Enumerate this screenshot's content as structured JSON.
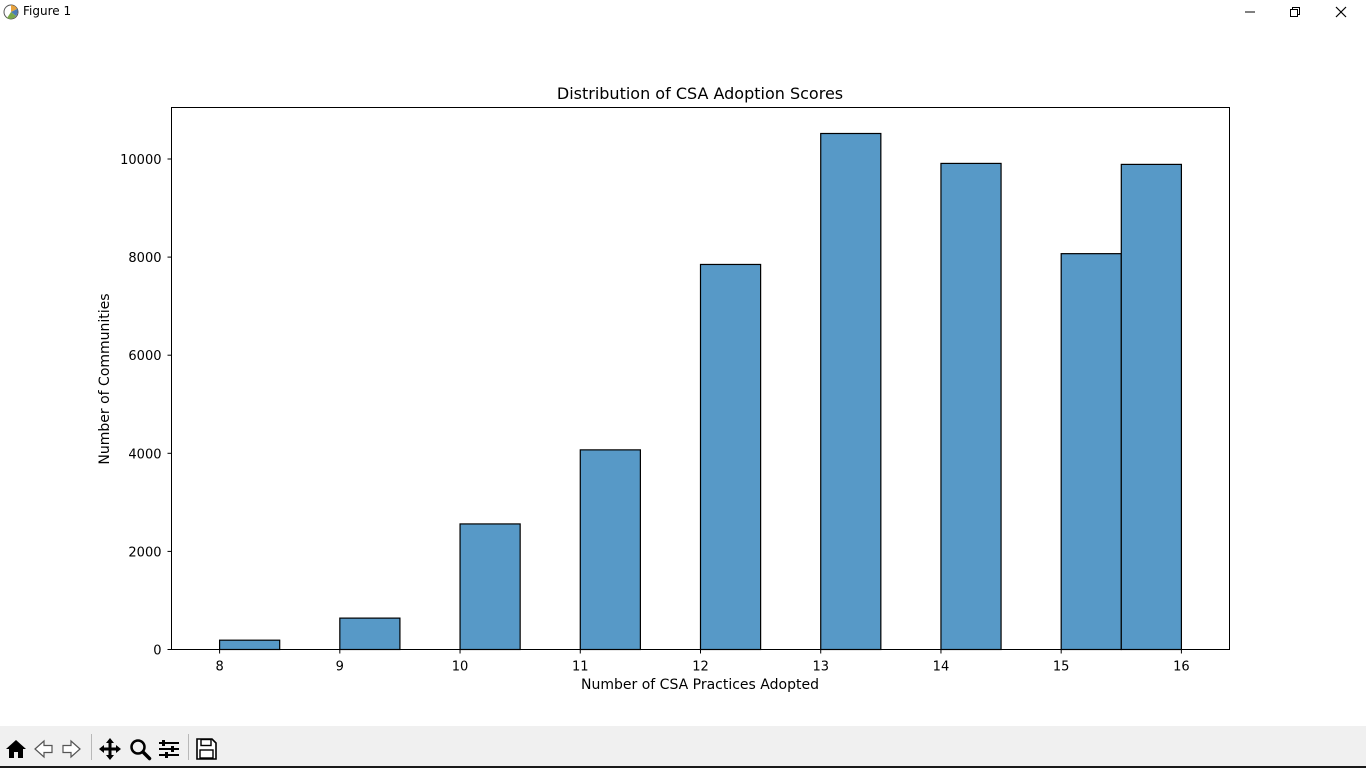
{
  "window": {
    "title": "Figure 1",
    "icon": "matplotlib-icon",
    "controls": [
      "minimize-icon",
      "maximize-icon",
      "close-icon"
    ]
  },
  "toolbar": {
    "buttons": [
      "home-icon",
      "back-arrow-icon",
      "forward-arrow-icon",
      "pan-icon",
      "zoom-icon",
      "configure-subplots-icon",
      "save-icon"
    ]
  },
  "chart_data": {
    "type": "bar",
    "title": "Distribution of CSA Adoption Scores",
    "xlabel": "Number of CSA Practices Adopted",
    "ylabel": "Number of Communities",
    "bin_edges": [
      8,
      8.5,
      9,
      9.5,
      10,
      10.5,
      11,
      11.5,
      12,
      12.5,
      13,
      13.5,
      14,
      14.5,
      15,
      15.5,
      16
    ],
    "values": [
      190,
      0,
      640,
      0,
      2560,
      0,
      4070,
      0,
      7850,
      0,
      10520,
      0,
      9910,
      0,
      8070,
      9890
    ],
    "xlim": [
      7.6,
      16.4
    ],
    "ylim": [
      0,
      11050
    ],
    "xticks": [
      8,
      9,
      10,
      11,
      12,
      13,
      14,
      15,
      16
    ],
    "yticks": [
      0,
      2000,
      4000,
      6000,
      8000,
      10000
    ],
    "bar_color": "#5799c7",
    "edge_color": "#000000",
    "grid": false,
    "legend": "none"
  }
}
